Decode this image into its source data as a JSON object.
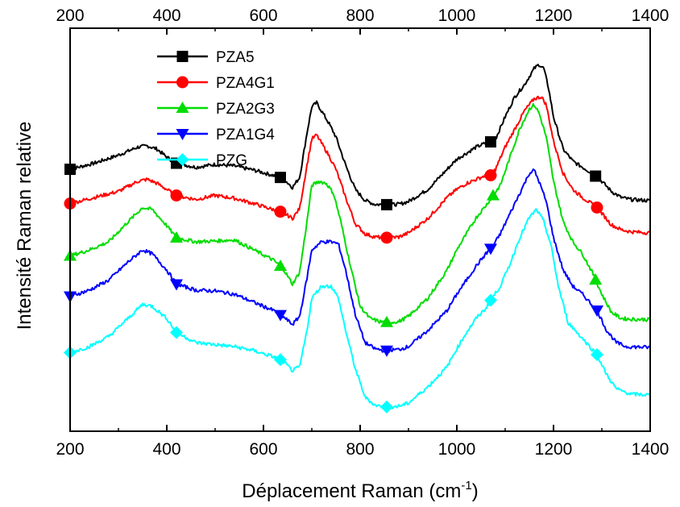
{
  "chart_data": {
    "type": "line",
    "xlabel": "Déplacement Raman (cm",
    "xlabel_superscript": "-1",
    "xlabel_suffix": ")",
    "ylabel": "Intensité Raman relative",
    "xlim": [
      200,
      1400
    ],
    "ylim": [
      0,
      100
    ],
    "x_ticks": [
      200,
      400,
      600,
      800,
      1000,
      1200,
      1400
    ],
    "y_ticks_shown": false,
    "top_axis_ticks": true,
    "grid": false,
    "legend_position": "top-left",
    "series": [
      {
        "name": "PZA5",
        "color": "#000000",
        "marker": "square",
        "points": [
          [
            200,
            65
          ],
          [
            250,
            66.5
          ],
          [
            300,
            68.5
          ],
          [
            340,
            70.5
          ],
          [
            360,
            70.8
          ],
          [
            380,
            70
          ],
          [
            400,
            68
          ],
          [
            420,
            66.5
          ],
          [
            460,
            65.5
          ],
          [
            500,
            66.2
          ],
          [
            540,
            65.8
          ],
          [
            580,
            64.8
          ],
          [
            620,
            63.5
          ],
          [
            640,
            62.8
          ],
          [
            660,
            60.5
          ],
          [
            675,
            63
          ],
          [
            690,
            74
          ],
          [
            700,
            80.5
          ],
          [
            710,
            81.5
          ],
          [
            720,
            79.5
          ],
          [
            735,
            76.5
          ],
          [
            750,
            73
          ],
          [
            770,
            66
          ],
          [
            790,
            60
          ],
          [
            810,
            57.3
          ],
          [
            830,
            56.3
          ],
          [
            850,
            56.2
          ],
          [
            880,
            56.3
          ],
          [
            900,
            57
          ],
          [
            940,
            60
          ],
          [
            980,
            65
          ],
          [
            1000,
            67.5
          ],
          [
            1020,
            69
          ],
          [
            1040,
            70.5
          ],
          [
            1060,
            71.5
          ],
          [
            1070,
            71.8
          ],
          [
            1080,
            72.5
          ],
          [
            1100,
            78
          ],
          [
            1120,
            83
          ],
          [
            1140,
            86
          ],
          [
            1160,
            90
          ],
          [
            1170,
            91
          ],
          [
            1180,
            90
          ],
          [
            1190,
            85
          ],
          [
            1200,
            78
          ],
          [
            1220,
            70
          ],
          [
            1240,
            67
          ],
          [
            1260,
            65.5
          ],
          [
            1280,
            64
          ],
          [
            1300,
            62
          ],
          [
            1320,
            59.5
          ],
          [
            1340,
            58
          ],
          [
            1360,
            57.5
          ],
          [
            1400,
            57.2
          ]
        ],
        "marker_x": [
          200,
          420,
          635,
          855,
          1070,
          1287
        ]
      },
      {
        "name": "PZA4G1",
        "color": "#ff0000",
        "marker": "circle",
        "points": [
          [
            200,
            56.5
          ],
          [
            250,
            58
          ],
          [
            300,
            59.5
          ],
          [
            340,
            62
          ],
          [
            360,
            62.5
          ],
          [
            380,
            61.5
          ],
          [
            400,
            60
          ],
          [
            420,
            58.5
          ],
          [
            460,
            57.5
          ],
          [
            500,
            58.5
          ],
          [
            540,
            57.8
          ],
          [
            580,
            56.5
          ],
          [
            620,
            55
          ],
          [
            640,
            54.3
          ],
          [
            660,
            52.8
          ],
          [
            675,
            55.3
          ],
          [
            690,
            66
          ],
          [
            700,
            72.5
          ],
          [
            710,
            73.5
          ],
          [
            720,
            71.5
          ],
          [
            735,
            68.5
          ],
          [
            750,
            65
          ],
          [
            770,
            58
          ],
          [
            790,
            51.5
          ],
          [
            810,
            49
          ],
          [
            830,
            48.2
          ],
          [
            850,
            48
          ],
          [
            880,
            48.2
          ],
          [
            900,
            49.2
          ],
          [
            940,
            52.8
          ],
          [
            980,
            58
          ],
          [
            1000,
            60
          ],
          [
            1020,
            61.5
          ],
          [
            1040,
            62.5
          ],
          [
            1060,
            63.5
          ],
          [
            1070,
            63.5
          ],
          [
            1080,
            65
          ],
          [
            1100,
            70.5
          ],
          [
            1120,
            75
          ],
          [
            1140,
            79.5
          ],
          [
            1160,
            82.5
          ],
          [
            1175,
            83
          ],
          [
            1185,
            81
          ],
          [
            1200,
            72
          ],
          [
            1220,
            64
          ],
          [
            1240,
            60
          ],
          [
            1260,
            58
          ],
          [
            1290,
            55.5
          ],
          [
            1320,
            51.2
          ],
          [
            1340,
            50
          ],
          [
            1360,
            49.5
          ],
          [
            1400,
            49.2
          ]
        ],
        "marker_x": [
          200,
          420,
          635,
          855,
          1070,
          1290
        ]
      },
      {
        "name": "PZA2G3",
        "color": "#00dd00",
        "marker": "triangle-up",
        "points": [
          [
            200,
            43.5
          ],
          [
            240,
            45
          ],
          [
            280,
            47
          ],
          [
            320,
            52
          ],
          [
            350,
            55.5
          ],
          [
            370,
            55
          ],
          [
            400,
            51
          ],
          [
            420,
            48
          ],
          [
            460,
            47
          ],
          [
            500,
            47.2
          ],
          [
            540,
            47.5
          ],
          [
            580,
            45
          ],
          [
            620,
            42.5
          ],
          [
            640,
            40.5
          ],
          [
            660,
            36.5
          ],
          [
            675,
            39.5
          ],
          [
            690,
            52
          ],
          [
            700,
            61
          ],
          [
            715,
            62
          ],
          [
            730,
            61.5
          ],
          [
            745,
            59
          ],
          [
            760,
            52
          ],
          [
            780,
            41
          ],
          [
            800,
            31
          ],
          [
            820,
            28
          ],
          [
            840,
            27.2
          ],
          [
            860,
            27
          ],
          [
            880,
            27.2
          ],
          [
            900,
            28.5
          ],
          [
            940,
            33
          ],
          [
            980,
            40
          ],
          [
            1000,
            45
          ],
          [
            1020,
            49
          ],
          [
            1040,
            53
          ],
          [
            1060,
            56
          ],
          [
            1075,
            58.5
          ],
          [
            1090,
            61
          ],
          [
            1110,
            68
          ],
          [
            1130,
            75
          ],
          [
            1150,
            80
          ],
          [
            1160,
            81
          ],
          [
            1170,
            79
          ],
          [
            1185,
            73
          ],
          [
            1200,
            62
          ],
          [
            1220,
            52
          ],
          [
            1240,
            47
          ],
          [
            1260,
            44
          ],
          [
            1280,
            39.5
          ],
          [
            1300,
            34
          ],
          [
            1320,
            29.5
          ],
          [
            1340,
            28
          ],
          [
            1360,
            27.8
          ],
          [
            1400,
            27.7
          ]
        ],
        "marker_x": [
          200,
          420,
          635,
          855,
          1075,
          1287
        ]
      },
      {
        "name": "PZA1G4",
        "color": "#0000ff",
        "marker": "triangle-down",
        "points": [
          [
            200,
            33.5
          ],
          [
            240,
            35
          ],
          [
            280,
            37.5
          ],
          [
            320,
            42
          ],
          [
            350,
            45
          ],
          [
            370,
            44
          ],
          [
            400,
            40
          ],
          [
            420,
            36.5
          ],
          [
            460,
            35
          ],
          [
            500,
            34.8
          ],
          [
            540,
            34
          ],
          [
            580,
            32
          ],
          [
            620,
            30
          ],
          [
            640,
            28.5
          ],
          [
            660,
            26.5
          ],
          [
            675,
            28.5
          ],
          [
            690,
            38
          ],
          [
            700,
            45
          ],
          [
            720,
            47
          ],
          [
            740,
            47
          ],
          [
            755,
            46.5
          ],
          [
            770,
            40
          ],
          [
            790,
            29
          ],
          [
            810,
            22
          ],
          [
            830,
            20.5
          ],
          [
            850,
            20
          ],
          [
            880,
            20.3
          ],
          [
            900,
            21
          ],
          [
            940,
            25
          ],
          [
            980,
            30
          ],
          [
            1000,
            34
          ],
          [
            1020,
            37.5
          ],
          [
            1040,
            41
          ],
          [
            1060,
            44
          ],
          [
            1075,
            46
          ],
          [
            1090,
            49
          ],
          [
            1110,
            54
          ],
          [
            1130,
            59
          ],
          [
            1150,
            64
          ],
          [
            1160,
            64.8
          ],
          [
            1170,
            62
          ],
          [
            1185,
            57
          ],
          [
            1200,
            48
          ],
          [
            1220,
            40
          ],
          [
            1240,
            36
          ],
          [
            1260,
            34
          ],
          [
            1290,
            30
          ],
          [
            1310,
            25
          ],
          [
            1330,
            22
          ],
          [
            1350,
            21
          ],
          [
            1400,
            20.8
          ]
        ],
        "marker_x": [
          200,
          420,
          635,
          855,
          1070,
          1290
        ]
      },
      {
        "name": "PZG",
        "color": "#00ffff",
        "marker": "diamond",
        "points": [
          [
            200,
            19.5
          ],
          [
            240,
            21
          ],
          [
            280,
            23.5
          ],
          [
            320,
            28
          ],
          [
            350,
            31.5
          ],
          [
            370,
            31
          ],
          [
            400,
            28
          ],
          [
            420,
            24.5
          ],
          [
            460,
            22
          ],
          [
            500,
            21.5
          ],
          [
            540,
            21
          ],
          [
            580,
            20
          ],
          [
            620,
            18.5
          ],
          [
            640,
            17.5
          ],
          [
            660,
            15
          ],
          [
            675,
            16
          ],
          [
            690,
            25
          ],
          [
            700,
            33
          ],
          [
            720,
            36
          ],
          [
            740,
            36
          ],
          [
            755,
            33
          ],
          [
            770,
            25
          ],
          [
            790,
            15.5
          ],
          [
            810,
            8.5
          ],
          [
            830,
            6.5
          ],
          [
            850,
            6
          ],
          [
            880,
            6.2
          ],
          [
            900,
            7
          ],
          [
            940,
            11
          ],
          [
            980,
            16
          ],
          [
            1000,
            20.5
          ],
          [
            1020,
            24.5
          ],
          [
            1040,
            28
          ],
          [
            1060,
            30.5
          ],
          [
            1070,
            32.5
          ],
          [
            1090,
            36
          ],
          [
            1110,
            41.5
          ],
          [
            1130,
            48
          ],
          [
            1150,
            53
          ],
          [
            1165,
            55
          ],
          [
            1180,
            52
          ],
          [
            1195,
            46
          ],
          [
            1210,
            36
          ],
          [
            1230,
            27
          ],
          [
            1260,
            23
          ],
          [
            1290,
            19
          ],
          [
            1310,
            14
          ],
          [
            1330,
            10.5
          ],
          [
            1360,
            9.2
          ],
          [
            1400,
            9
          ]
        ],
        "marker_x": [
          200,
          420,
          635,
          855,
          1070,
          1290
        ]
      }
    ]
  }
}
